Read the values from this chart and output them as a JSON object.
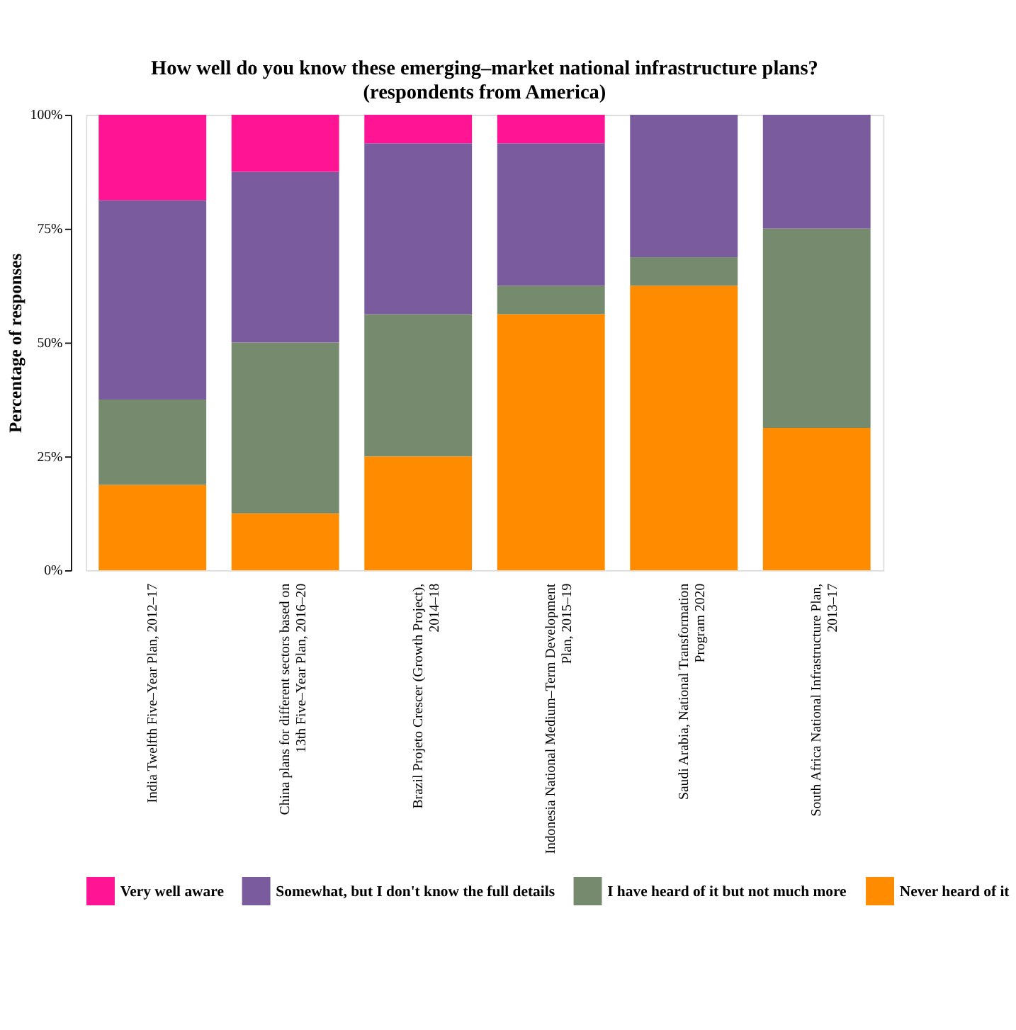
{
  "chart_data": {
    "type": "bar",
    "stacked": true,
    "title": "How well do you know these emerging–market national infrastructure plans?",
    "subtitle": "(respondents from America)",
    "ylabel": "Percentage of responses",
    "categories": [
      "India Twelfth Five–Year Plan, 2012–17",
      "China plans for different sectors based on 13th Five–Year Plan, 2016–20",
      "Brazil Projeto Crescer (Growth Project), 2014–18",
      "Indonesia National Medium–Term Development Plan, 2015–19",
      "Saudi Arabia, National Transformation Program 2020",
      "South Africa National Infrastructure Plan, 2013–17"
    ],
    "series": [
      {
        "name": "Never heard of it",
        "color": "#ff8c00",
        "values": [
          18.75,
          12.5,
          25,
          56.25,
          62.5,
          31.25
        ]
      },
      {
        "name": "I have heard of it but not much more",
        "color": "#768a6e",
        "values": [
          18.75,
          37.5,
          31.25,
          6.25,
          6.25,
          43.75
        ]
      },
      {
        "name": "Somewhat, but I don't know the full details",
        "color": "#7a5c9e",
        "values": [
          43.75,
          37.5,
          37.5,
          31.25,
          31.25,
          25
        ]
      },
      {
        "name": "Very well aware",
        "color": "#ff1493",
        "values": [
          18.75,
          12.5,
          6.25,
          6.25,
          0,
          0
        ]
      }
    ],
    "ylim": [
      0,
      100
    ],
    "yticks": [
      {
        "value": 0,
        "label": "0%"
      },
      {
        "value": 25,
        "label": "25%"
      },
      {
        "value": 50,
        "label": "50%"
      },
      {
        "value": 75,
        "label": "75%"
      },
      {
        "value": 100,
        "label": "100%"
      }
    ],
    "grid": false,
    "legend": "bottom"
  }
}
